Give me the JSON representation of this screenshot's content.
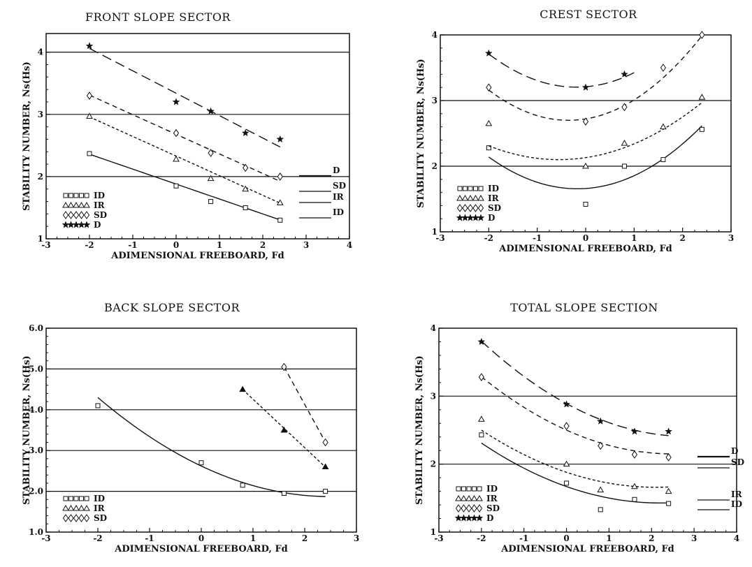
{
  "chart_data": [
    {
      "type": "scatter",
      "title": "FRONT SLOPE SECTOR",
      "xlabel": "ADIMENSIONAL FREEBOARD, Fd",
      "ylabel": "STABILITY NUMBER, Ns(Hs)",
      "xlim": [
        -3,
        4
      ],
      "ylim": [
        1,
        4.3
      ],
      "xticks": [
        -3,
        -2,
        -1,
        0,
        1,
        2,
        3,
        4
      ],
      "xtick_labels": [
        "-3",
        "-2",
        "-1",
        "0",
        "1",
        "2",
        "3",
        "4"
      ],
      "yticks": [
        1,
        2,
        3,
        4
      ],
      "ytick_labels": [
        "1",
        "2",
        "3",
        "4"
      ],
      "hlines": [
        2,
        3,
        4
      ],
      "legend": [
        "ID",
        "IR",
        "SD",
        "D"
      ],
      "legend_placement": "bottom-left",
      "right_labels": [
        "D",
        "SD",
        "IR",
        "ID"
      ],
      "series": [
        {
          "name": "ID",
          "marker": "square",
          "line": "solid",
          "x": [
            -2,
            0,
            0.8,
            1.6,
            2.4
          ],
          "y": [
            2.37,
            1.85,
            1.6,
            1.5,
            1.3
          ],
          "fit": {
            "kind": "linear",
            "x": [
              -2,
              2.4
            ],
            "coef": [
              1.88,
              -0.24
            ]
          }
        },
        {
          "name": "IR",
          "marker": "triangle",
          "line": "dotted",
          "x": [
            -2,
            0,
            0.8,
            1.6,
            2.4
          ],
          "y": [
            2.97,
            2.28,
            1.97,
            1.8,
            1.58
          ],
          "fit": {
            "kind": "linear",
            "x": [
              -2,
              2.4
            ],
            "coef": [
              2.33,
              -0.315
            ]
          }
        },
        {
          "name": "SD",
          "marker": "diamond",
          "line": "short-dash",
          "x": [
            -2,
            0,
            0.8,
            1.6,
            2.4
          ],
          "y": [
            3.3,
            2.7,
            2.38,
            2.14,
            2.0
          ],
          "fit": {
            "kind": "linear",
            "x": [
              -2,
              2.4
            ],
            "coef": [
              2.68,
              -0.315
            ]
          }
        },
        {
          "name": "D",
          "marker": "star",
          "line": "long-dash",
          "x": [
            -2,
            0,
            0.8,
            1.6,
            2.4
          ],
          "y": [
            4.1,
            3.2,
            3.05,
            2.7,
            2.6
          ],
          "fit": {
            "kind": "linear",
            "x": [
              -2,
              2.4
            ],
            "coef": [
              3.34,
              -0.36
            ]
          }
        }
      ]
    },
    {
      "type": "scatter",
      "title": "CREST SECTOR",
      "xlabel": "ADIMENSIONAL FREEBOARD, Fd",
      "ylabel": "STABILITY NUMBER, Ns(Hs)",
      "xlim": [
        -3,
        3
      ],
      "ylim": [
        1,
        4
      ],
      "xticks": [
        -3,
        -2,
        -1,
        0,
        1,
        2,
        3
      ],
      "xtick_labels": [
        "-3",
        "-2",
        "-1",
        "0",
        "1",
        "2",
        "3"
      ],
      "yticks": [
        1,
        2,
        3,
        4
      ],
      "ytick_labels": [
        "1",
        "2",
        "3",
        "4"
      ],
      "hlines": [
        2,
        3
      ],
      "legend": [
        "ID",
        "IR",
        "SD",
        "D"
      ],
      "legend_placement": "bottom-left",
      "right_labels": [],
      "series": [
        {
          "name": "ID",
          "marker": "square",
          "line": "solid",
          "x": [
            -2,
            0,
            0.8,
            1.6,
            2.4
          ],
          "y": [
            2.28,
            1.42,
            2.0,
            2.1,
            2.56
          ],
          "fit": {
            "kind": "quadratic",
            "x": [
              -2,
              2.4
            ],
            "coef": [
              1.66,
              0.05,
              0.145
            ]
          }
        },
        {
          "name": "IR",
          "marker": "triangle",
          "line": "dotted",
          "x": [
            -2,
            0,
            0.8,
            1.6,
            2.4
          ],
          "y": [
            2.65,
            2.0,
            2.35,
            2.6,
            3.05
          ],
          "fit": {
            "kind": "quadratic",
            "x": [
              -2,
              2.4
            ],
            "coef": [
              2.13,
              0.11,
              0.1
            ]
          }
        },
        {
          "name": "SD",
          "marker": "diamond",
          "line": "short-dash",
          "x": [
            -2,
            0,
            0.8,
            1.6,
            2.4
          ],
          "y": [
            3.2,
            2.68,
            2.9,
            3.5,
            4.0
          ],
          "fit": {
            "kind": "quadratic",
            "x": [
              -2,
              2.4
            ],
            "coef": [
              2.72,
              0.12,
              0.17
            ]
          }
        },
        {
          "name": "D",
          "marker": "star",
          "line": "long-dash",
          "x": [
            -2,
            0,
            0.8
          ],
          "y": [
            3.72,
            3.2,
            3.4
          ],
          "fit": {
            "kind": "quadratic",
            "x": [
              -2,
              1.0
            ],
            "coef": [
              3.21,
              0.06,
              0.155
            ]
          }
        }
      ]
    },
    {
      "type": "scatter",
      "title": "BACK SLOPE SECTOR",
      "xlabel": "ADIMENSIONAL FREEBOARD, Fd",
      "ylabel": "STABILITY NUMBER, Ns(Hs)",
      "xlim": [
        -3,
        3
      ],
      "ylim": [
        1,
        6
      ],
      "xticks": [
        -3,
        -2,
        -1,
        0,
        1,
        2,
        3
      ],
      "xtick_labels": [
        "-3",
        "-2",
        "-1",
        "0",
        "1",
        "2",
        "3"
      ],
      "yticks": [
        1,
        2,
        3,
        4,
        5,
        6
      ],
      "ytick_labels": [
        "1.0",
        "2.0",
        "3.0",
        "4.0",
        "5.0",
        "6.0"
      ],
      "hlines": [
        2,
        3,
        4,
        5
      ],
      "legend": [
        "ID",
        "IR",
        "SD"
      ],
      "legend_placement": "bottom-left",
      "right_labels": [],
      "series": [
        {
          "name": "ID",
          "marker": "square",
          "line": "solid",
          "x": [
            -2,
            0,
            0.8,
            1.6,
            2.4
          ],
          "y": [
            4.1,
            2.7,
            2.15,
            1.95,
            2.0
          ],
          "fit": {
            "kind": "quadratic",
            "x": [
              -2,
              2.4
            ],
            "coef": [
              2.62,
              -0.6,
              0.12
            ]
          }
        },
        {
          "name": "IR",
          "marker": "triangle",
          "line": "dotted",
          "x": [
            0.8,
            1.6,
            2.4
          ],
          "y": [
            4.5,
            3.5,
            2.6
          ],
          "fit": {
            "kind": "linear",
            "x": [
              0.8,
              2.4
            ],
            "coef": [
              5.45,
              -1.19
            ]
          }
        },
        {
          "name": "SD",
          "marker": "diamond",
          "line": "short-dash",
          "x": [
            1.6,
            2.4
          ],
          "y": [
            5.05,
            3.2
          ],
          "fit": {
            "kind": "linear",
            "x": [
              1.6,
              2.4
            ],
            "coef": [
              8.75,
              -2.31
            ]
          }
        }
      ]
    },
    {
      "type": "scatter",
      "title": "TOTAL SLOPE SECTION",
      "xlabel": "ADIMENSIONAL FREEBOARD, Fd",
      "ylabel": "STABILITY NUMBER, Ns(Hs)",
      "xlim": [
        -3,
        4
      ],
      "ylim": [
        1,
        4
      ],
      "xticks": [
        -3,
        -2,
        -1,
        0,
        1,
        2,
        3,
        4
      ],
      "xtick_labels": [
        "-3",
        "-2",
        "-1",
        "0",
        "1",
        "2",
        "3",
        "4"
      ],
      "yticks": [
        1,
        2,
        3,
        4
      ],
      "ytick_labels": [
        "1",
        "2",
        "3",
        "4"
      ],
      "hlines": [
        2,
        3
      ],
      "legend": [
        "ID",
        "IR",
        "SD",
        "D"
      ],
      "legend_placement": "bottom-left",
      "right_labels": [
        "D",
        "SD",
        "IR",
        "ID"
      ],
      "series": [
        {
          "name": "ID",
          "marker": "square",
          "line": "solid",
          "x": [
            -2,
            0,
            0.8,
            1.6,
            2.4
          ],
          "y": [
            2.43,
            1.72,
            1.33,
            1.48,
            1.42
          ],
          "fit": {
            "kind": "quadratic",
            "x": [
              -2,
              2.4
            ],
            "coef": [
              1.67,
              -0.22,
              0.05
            ]
          }
        },
        {
          "name": "IR",
          "marker": "triangle",
          "line": "dotted",
          "x": [
            -2,
            0,
            0.8,
            1.6,
            2.4
          ],
          "y": [
            2.66,
            2.0,
            1.62,
            1.67,
            1.6
          ],
          "fit": {
            "kind": "quadratic",
            "x": [
              -2,
              2.4
            ],
            "coef": [
              1.88,
              -0.21,
              0.05
            ]
          }
        },
        {
          "name": "SD",
          "marker": "diamond",
          "line": "short-dash",
          "x": [
            -2,
            0,
            0.8,
            1.6,
            2.4
          ],
          "y": [
            3.28,
            2.56,
            2.27,
            2.14,
            2.1
          ],
          "fit": {
            "kind": "quadratic",
            "x": [
              -2,
              2.4
            ],
            "coef": [
              2.5,
              -0.28,
              0.056
            ]
          }
        },
        {
          "name": "D",
          "marker": "star",
          "line": "long-dash",
          "x": [
            -2,
            0,
            0.8,
            1.6,
            2.4
          ],
          "y": [
            3.8,
            2.88,
            2.63,
            2.48,
            2.48
          ],
          "fit": {
            "kind": "quadratic",
            "x": [
              -2,
              2.4
            ],
            "coef": [
              2.89,
              -0.34,
              0.06
            ]
          }
        }
      ]
    }
  ]
}
